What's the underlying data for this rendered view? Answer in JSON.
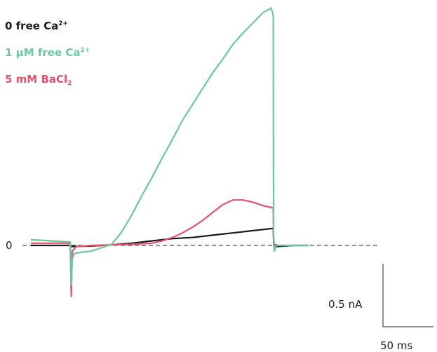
{
  "chart_data": {
    "type": "line",
    "title": "",
    "xlabel": "",
    "ylabel": "",
    "units": {
      "x": "ms",
      "y": "nA"
    },
    "zero_label": "0",
    "scale_bar": {
      "x_value": 50,
      "x_label": "50 ms",
      "y_value": 0.5,
      "y_label": "0.5 nA"
    },
    "legend_position": "top-left",
    "grid": false,
    "series": [
      {
        "legend": {
          "prefix": "0 free Ca",
          "sup": "2+",
          "sub": ""
        },
        "color": "#1a1a1a",
        "x": [
          0,
          20,
          39,
          39.3,
          40,
          60,
          80,
          100,
          120,
          140,
          160,
          180,
          200,
          220,
          240,
          240.5,
          243,
          260,
          275
        ],
        "y": [
          0,
          0,
          0,
          -0.01,
          -0.01,
          -0.005,
          0.005,
          0.02,
          0.04,
          0.06,
          0.07,
          0.09,
          0.11,
          0.13,
          0.15,
          0,
          -0.01,
          0,
          0
        ]
      },
      {
        "legend": {
          "prefix": "1 μM free Ca",
          "sup": "2+",
          "sub": ""
        },
        "color": "#6cc79f",
        "x": [
          0,
          20,
          39,
          39.3,
          40,
          41,
          43,
          50,
          60,
          70,
          80,
          90,
          100,
          110,
          120,
          130,
          140,
          150,
          160,
          170,
          180,
          190,
          200,
          210,
          220,
          230,
          238,
          240,
          240.3,
          241,
          243,
          255,
          275
        ],
        "y": [
          0.05,
          0.04,
          0.03,
          -0.12,
          -0.35,
          -0.12,
          -0.07,
          -0.06,
          -0.05,
          -0.02,
          0.01,
          0.12,
          0.27,
          0.44,
          0.6,
          0.77,
          0.93,
          1.1,
          1.24,
          1.38,
          1.52,
          1.64,
          1.77,
          1.87,
          1.96,
          2.05,
          2.09,
          2.02,
          0.1,
          -0.05,
          0.0,
          0.0,
          0.0
        ]
      },
      {
        "legend": {
          "prefix": "5 mM BaCl",
          "sup": "",
          "sub": "2"
        },
        "color": "#e8506f",
        "x": [
          0,
          20,
          39,
          39.3,
          40,
          41,
          45,
          60,
          80,
          100,
          120,
          130,
          140,
          150,
          160,
          170,
          180,
          190,
          200,
          210,
          220,
          230,
          240,
          240.3,
          241,
          245,
          260,
          275
        ],
        "y": [
          0.02,
          0.02,
          0.02,
          -0.1,
          -0.45,
          -0.05,
          -0.01,
          0,
          0.005,
          0.01,
          0.02,
          0.04,
          0.07,
          0.11,
          0.16,
          0.22,
          0.29,
          0.36,
          0.4,
          0.4,
          0.38,
          0.35,
          0.33,
          0.06,
          0.01,
          0.0,
          0.0,
          0.0
        ]
      }
    ]
  }
}
